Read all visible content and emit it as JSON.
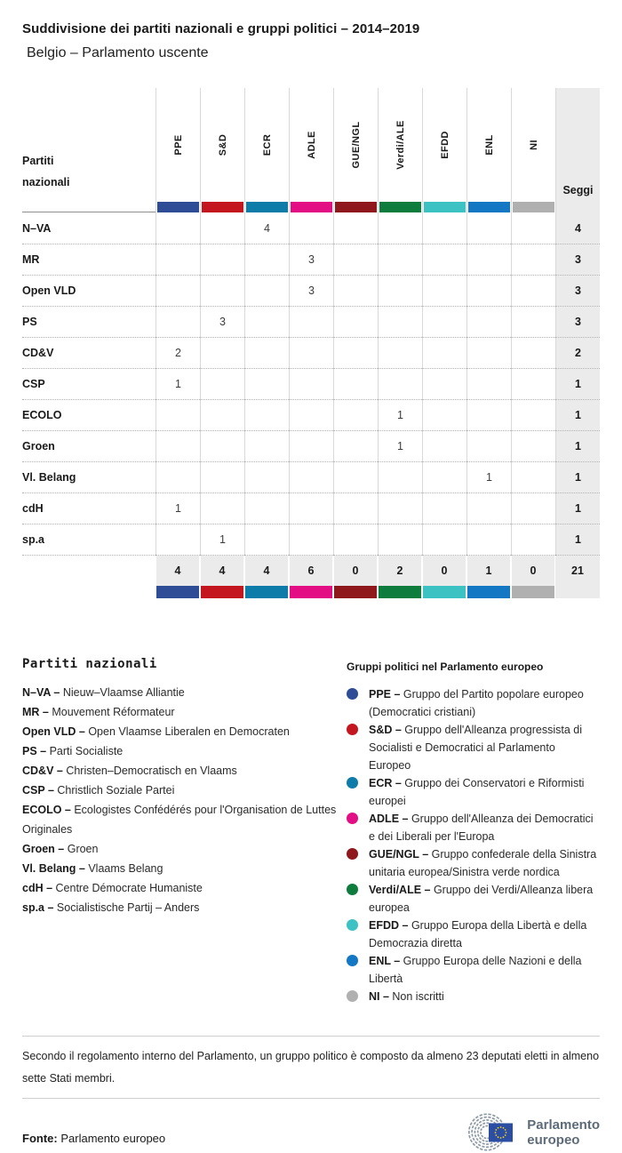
{
  "page": {
    "title": "Suddivisione dei partiti nazionali e gruppi politici – 2014–2019",
    "subtitle": "Belgio – Parlamento uscente"
  },
  "table_header": {
    "label_line1": "Partiti",
    "label_line2": "nazionali"
  },
  "chart_data": {
    "type": "table",
    "title": "Suddivisione dei partiti nazionali e gruppi politici – 2014–2019",
    "subtitle": "Belgio – Parlamento uscente",
    "row_axis_label": "Partiti nazionali",
    "seats_label": "Seggi",
    "groups": [
      {
        "label": "PPE",
        "color": "#2f4d96"
      },
      {
        "label": "S&D",
        "color": "#c4161e"
      },
      {
        "label": "ECR",
        "color": "#0e7ca8"
      },
      {
        "label": "ADLE",
        "color": "#e30d84"
      },
      {
        "label": "GUE/NGL",
        "color": "#8f181c"
      },
      {
        "label": "Verdi/ALE",
        "color": "#0d7c3d"
      },
      {
        "label": "EFDD",
        "color": "#3cc2c2"
      },
      {
        "label": "ENL",
        "color": "#1377c4"
      },
      {
        "label": "NI",
        "color": "#b0b0b0"
      }
    ],
    "rows": [
      {
        "party": "N–VA",
        "values": [
          null,
          null,
          4,
          null,
          null,
          null,
          null,
          null,
          null
        ],
        "seats": 4
      },
      {
        "party": "MR",
        "values": [
          null,
          null,
          null,
          3,
          null,
          null,
          null,
          null,
          null
        ],
        "seats": 3
      },
      {
        "party": "Open VLD",
        "values": [
          null,
          null,
          null,
          3,
          null,
          null,
          null,
          null,
          null
        ],
        "seats": 3
      },
      {
        "party": "PS",
        "values": [
          null,
          3,
          null,
          null,
          null,
          null,
          null,
          null,
          null
        ],
        "seats": 3
      },
      {
        "party": "CD&V",
        "values": [
          2,
          null,
          null,
          null,
          null,
          null,
          null,
          null,
          null
        ],
        "seats": 2
      },
      {
        "party": "CSP",
        "values": [
          1,
          null,
          null,
          null,
          null,
          null,
          null,
          null,
          null
        ],
        "seats": 1
      },
      {
        "party": "ECOLO",
        "values": [
          null,
          null,
          null,
          null,
          null,
          1,
          null,
          null,
          null
        ],
        "seats": 1
      },
      {
        "party": "Groen",
        "values": [
          null,
          null,
          null,
          null,
          null,
          1,
          null,
          null,
          null
        ],
        "seats": 1
      },
      {
        "party": "Vl. Belang",
        "values": [
          null,
          null,
          null,
          null,
          null,
          null,
          null,
          1,
          null
        ],
        "seats": 1
      },
      {
        "party": "cdH",
        "values": [
          1,
          null,
          null,
          null,
          null,
          null,
          null,
          null,
          null
        ],
        "seats": 1
      },
      {
        "party": "sp.a",
        "values": [
          null,
          1,
          null,
          null,
          null,
          null,
          null,
          null,
          null
        ],
        "seats": 1
      }
    ],
    "totals": {
      "values": [
        4,
        4,
        4,
        6,
        0,
        2,
        0,
        1,
        0
      ],
      "seats": 21
    }
  },
  "legend_parties": {
    "heading": "Partiti nazionali",
    "items": [
      {
        "abbr": "N–VA",
        "name": "Nieuw–Vlaamse Alliantie"
      },
      {
        "abbr": "MR",
        "name": "Mouvement Réformateur"
      },
      {
        "abbr": "Open VLD",
        "name": "Open Vlaamse Liberalen en Democraten"
      },
      {
        "abbr": "PS",
        "name": "Parti Socialiste"
      },
      {
        "abbr": "CD&V",
        "name": "Christen–Democratisch en Vlaams"
      },
      {
        "abbr": "CSP",
        "name": "Christlich Soziale Partei"
      },
      {
        "abbr": "ECOLO",
        "name": "Ecologistes Confédérés pour l'Organisation de Luttes Originales"
      },
      {
        "abbr": "Groen",
        "name": "Groen"
      },
      {
        "abbr": "Vl. Belang",
        "name": "Vlaams Belang"
      },
      {
        "abbr": "cdH",
        "name": "Centre Démocrate Humaniste"
      },
      {
        "abbr": "sp.a",
        "name": "Socialistische Partij – Anders"
      }
    ]
  },
  "legend_groups": {
    "heading": "Gruppi politici nel Parlamento europeo",
    "items": [
      {
        "abbr": "PPE",
        "name": "Gruppo del Partito popolare europeo (Democratici cristiani)",
        "color": "#2f4d96"
      },
      {
        "abbr": "S&D",
        "name": "Gruppo dell'Alleanza progressista di Socialisti e Democratici al Parlamento Europeo",
        "color": "#c4161e"
      },
      {
        "abbr": "ECR",
        "name": "Gruppo dei Conservatori e Riformisti europei",
        "color": "#0e7ca8"
      },
      {
        "abbr": "ADLE",
        "name": "Gruppo dell'Alleanza dei Democratici e dei Liberali per l'Europa",
        "color": "#e30d84"
      },
      {
        "abbr": "GUE/NGL",
        "name": "Gruppo confederale della Sinistra unitaria europea/Sinistra verde nordica",
        "color": "#8f181c"
      },
      {
        "abbr": "Verdi/ALE",
        "name": "Gruppo dei Verdi/Alleanza libera europea",
        "color": "#0d7c3d"
      },
      {
        "abbr": "EFDD",
        "name": "Gruppo Europa della Libertà e della Democrazia diretta",
        "color": "#3cc2c2"
      },
      {
        "abbr": "ENL",
        "name": "Gruppo Europa delle Nazioni e della Libertà",
        "color": "#1377c4"
      },
      {
        "abbr": "NI",
        "name": "Non iscritti",
        "color": "#b0b0b0"
      }
    ]
  },
  "footer": {
    "note": "Secondo il regolamento interno del Parlamento, un gruppo politico è composto da almeno 23 deputati eletti in almeno sette Stati membri.",
    "source_label": "Fonte:",
    "source_text": "Parlamento europeo",
    "logo_line1": "Parlamento",
    "logo_line2": "europeo"
  }
}
